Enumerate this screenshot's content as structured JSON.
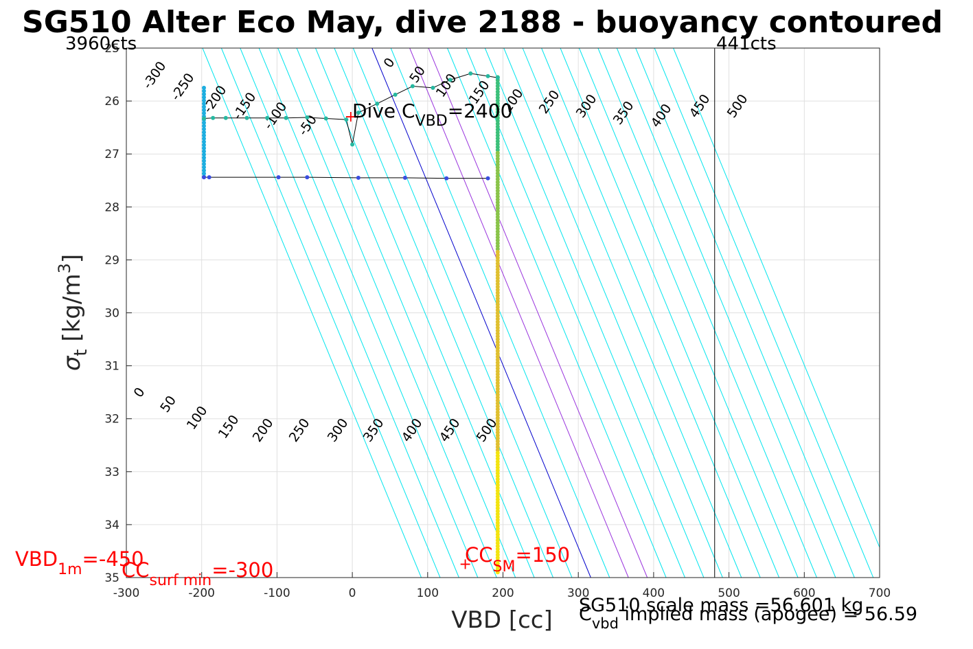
{
  "chart_data": {
    "type": "scatter",
    "title": "SG510 Alter Eco May, dive 2188 - buoyancy contoured",
    "xlabel": "VBD [cc]",
    "ylabel_symbol": "σ",
    "ylabel_sub": "t",
    "ylabel_units": "[kg/m",
    "ylabel_exp": "3",
    "ylabel_close": "]",
    "xlim": [
      -300,
      700
    ],
    "ylim": [
      25,
      35
    ],
    "y_reversed": true,
    "grid": true,
    "x_ticks": [
      "-300",
      "-200",
      "-100",
      "0",
      "100",
      "200",
      "300",
      "400",
      "500",
      "600",
      "700"
    ],
    "y_ticks": [
      "25",
      "26",
      "27",
      "28",
      "29",
      "30",
      "31",
      "32",
      "33",
      "34",
      "35"
    ],
    "counts_left": "3960cts",
    "counts_right": "441cts",
    "counts_right_x": 481,
    "contour_values": [
      -300,
      -250,
      -200,
      -150,
      -100,
      -50,
      0,
      50,
      100,
      150,
      200,
      250,
      300,
      350,
      400,
      450,
      500
    ],
    "upper_contour_labels": [
      "-300",
      "-250",
      "-200",
      "-150",
      "-100",
      "-50",
      "0",
      "50",
      "100",
      "150",
      "200",
      "250",
      "300",
      "350",
      "400",
      "450",
      "500"
    ],
    "lower_contour_labels": [
      "0",
      "50",
      "100",
      "150",
      "200",
      "250",
      "300",
      "350",
      "400",
      "450",
      "500"
    ],
    "contour_colors": {
      "default": "#00e5ee",
      "zero": "#0000cc",
      "highlight": "#9933dd"
    },
    "highlight_contours": [
      100,
      150
    ],
    "path_black": [
      {
        "x": -197,
        "y": 26.33
      },
      {
        "x": -185,
        "y": 26.32
      },
      {
        "x": -168,
        "y": 26.32
      },
      {
        "x": -140,
        "y": 26.32
      },
      {
        "x": -113,
        "y": 26.32
      },
      {
        "x": -88,
        "y": 26.32
      },
      {
        "x": -60,
        "y": 26.31
      },
      {
        "x": -35,
        "y": 26.33
      },
      {
        "x": -8,
        "y": 26.35
      },
      {
        "x": 0,
        "y": 26.82
      },
      {
        "x": 8,
        "y": 26.22
      },
      {
        "x": 33,
        "y": 26.05
      },
      {
        "x": 57,
        "y": 25.88
      },
      {
        "x": 80,
        "y": 25.72
      },
      {
        "x": 107,
        "y": 25.75
      },
      {
        "x": 130,
        "y": 25.6
      },
      {
        "x": 157,
        "y": 25.48
      },
      {
        "x": 180,
        "y": 25.53
      },
      {
        "x": 193,
        "y": 25.56
      }
    ],
    "bottom_row": [
      {
        "x": -197,
        "y": 27.44
      },
      {
        "x": -190,
        "y": 27.44
      },
      {
        "x": -98,
        "y": 27.44
      },
      {
        "x": -60,
        "y": 27.44
      },
      {
        "x": 8,
        "y": 27.45
      },
      {
        "x": 70,
        "y": 27.45
      },
      {
        "x": 125,
        "y": 27.46
      },
      {
        "x": 180,
        "y": 27.46
      }
    ],
    "dive_cvbd_marker": {
      "x": -2,
      "y": 26.3
    },
    "dive_cvbd_label": "Dive C",
    "dive_cvbd_sub": "VBD",
    "dive_cvbd_value": "=2400",
    "vbd_1m_label": "VBD",
    "vbd_1m_sub": "1m",
    "vbd_1m_value": "=-450",
    "cc_surf_label": "CC",
    "cc_surf_sub": "surf min",
    "cc_surf_value": "=-300",
    "cc_sm_label": "CC",
    "cc_sm_sub": "SM",
    "cc_sm_value": "=150",
    "cc_sm_marker": {
      "x": 150,
      "y": 34.75
    },
    "footer_line1": "SG510 scale mass =56.601 kg",
    "footer_c": "C",
    "footer_c_sub": "vbd",
    "footer_line2": "implied mass (apogee) = 56.59",
    "vertical_line_x": 481,
    "vertical_dot_x": 193,
    "colors": {
      "text": "#000000",
      "annotation": "#ff0000",
      "grid": "#e0e0e0",
      "axis": "#262626",
      "path": "#000000"
    }
  }
}
